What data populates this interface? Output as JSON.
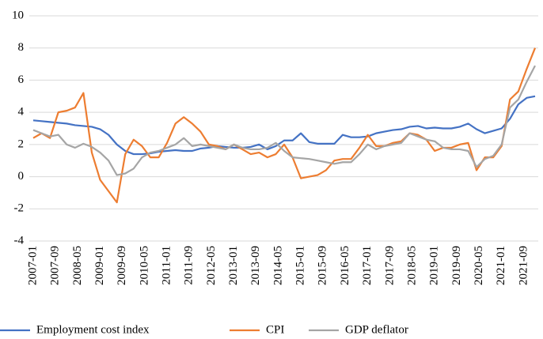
{
  "chart_data": {
    "type": "line",
    "x": [
      "2007-01",
      "2007-04",
      "2007-07",
      "2007-10",
      "2008-01",
      "2008-04",
      "2008-07",
      "2008-10",
      "2009-01",
      "2009-04",
      "2009-07",
      "2009-10",
      "2010-01",
      "2010-04",
      "2010-07",
      "2010-10",
      "2011-01",
      "2011-04",
      "2011-07",
      "2011-10",
      "2012-01",
      "2012-04",
      "2012-07",
      "2012-10",
      "2013-01",
      "2013-04",
      "2013-07",
      "2013-10",
      "2014-01",
      "2014-04",
      "2014-07",
      "2014-10",
      "2015-01",
      "2015-04",
      "2015-07",
      "2015-10",
      "2016-01",
      "2016-04",
      "2016-07",
      "2016-10",
      "2017-01",
      "2017-04",
      "2017-07",
      "2017-10",
      "2018-01",
      "2018-04",
      "2018-07",
      "2018-10",
      "2019-01",
      "2019-04",
      "2019-07",
      "2019-10",
      "2020-01",
      "2020-04",
      "2020-07",
      "2020-10",
      "2021-01",
      "2021-04",
      "2021-07",
      "2021-10",
      "2022-01"
    ],
    "xlim": [
      "2007-01",
      "2022-01"
    ],
    "xticks": [
      "2007-01",
      "2007-09",
      "2008-05",
      "2009-01",
      "2009-09",
      "2010-05",
      "2011-01",
      "2011-09",
      "2012-05",
      "2013-01",
      "2013-09",
      "2014-05",
      "2015-01",
      "2015-09",
      "2016-05",
      "2017-01",
      "2017-09",
      "2018-05",
      "2019-01",
      "2019-09",
      "2020-05",
      "2021-01",
      "2021-09"
    ],
    "ylim": [
      -4,
      10
    ],
    "yticks": [
      -4,
      -2,
      0,
      2,
      4,
      6,
      8,
      10
    ],
    "grid": true,
    "series": [
      {
        "name": "Employment cost index",
        "color": "#4472c4",
        "values": [
          3.5,
          3.45,
          3.4,
          3.35,
          3.3,
          3.2,
          3.15,
          3.1,
          2.95,
          2.6,
          2.0,
          1.6,
          1.4,
          1.4,
          1.45,
          1.55,
          1.6,
          1.65,
          1.6,
          1.6,
          1.75,
          1.8,
          1.9,
          1.85,
          1.8,
          1.8,
          1.85,
          2.0,
          1.7,
          1.9,
          2.25,
          2.25,
          2.7,
          2.15,
          2.05,
          2.05,
          2.05,
          2.6,
          2.45,
          2.45,
          2.5,
          2.7,
          2.8,
          2.9,
          2.95,
          3.1,
          3.15,
          3.0,
          3.05,
          3.0,
          3.0,
          3.1,
          3.3,
          2.95,
          2.7,
          2.85,
          3.0,
          3.6,
          4.5,
          4.9,
          5.0
        ]
      },
      {
        "name": "CPI",
        "color": "#ed7d31",
        "values": [
          2.4,
          2.7,
          2.4,
          4.0,
          4.1,
          4.3,
          5.2,
          1.5,
          -0.2,
          -0.9,
          -1.6,
          1.4,
          2.3,
          1.9,
          1.2,
          1.2,
          2.1,
          3.3,
          3.7,
          3.3,
          2.8,
          2.0,
          1.9,
          1.7,
          2.0,
          1.7,
          1.4,
          1.5,
          1.2,
          1.4,
          2.0,
          1.2,
          -0.1,
          0.0,
          0.1,
          0.4,
          1.0,
          1.1,
          1.1,
          1.8,
          2.6,
          1.9,
          1.9,
          2.1,
          2.2,
          2.7,
          2.6,
          2.3,
          1.6,
          1.8,
          1.8,
          2.0,
          2.1,
          0.4,
          1.2,
          1.2,
          1.9,
          4.8,
          5.3,
          6.7,
          8.0
        ]
      },
      {
        "name": "GDP deflator",
        "color": "#a5a5a5",
        "values": [
          2.9,
          2.7,
          2.5,
          2.6,
          2.0,
          1.8,
          2.05,
          1.85,
          1.5,
          1.0,
          0.1,
          0.2,
          0.5,
          1.2,
          1.5,
          1.6,
          1.8,
          2.0,
          2.4,
          1.9,
          2.0,
          1.9,
          1.8,
          1.7,
          2.0,
          1.8,
          1.7,
          1.7,
          1.8,
          2.1,
          1.6,
          1.2,
          1.15,
          1.1,
          1.0,
          0.9,
          0.8,
          0.9,
          0.9,
          1.4,
          2.0,
          1.7,
          1.9,
          2.0,
          2.1,
          2.7,
          2.5,
          2.3,
          2.2,
          1.8,
          1.7,
          1.7,
          1.6,
          0.6,
          1.1,
          1.3,
          2.0,
          4.3,
          4.8,
          5.9,
          6.9
        ]
      }
    ]
  }
}
